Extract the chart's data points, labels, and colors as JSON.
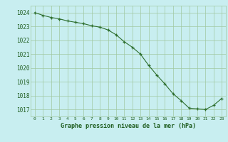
{
  "x": [
    0,
    1,
    2,
    3,
    4,
    5,
    6,
    7,
    8,
    9,
    10,
    11,
    12,
    13,
    14,
    15,
    16,
    17,
    18,
    19,
    20,
    21,
    22,
    23
  ],
  "y": [
    1024.0,
    1023.8,
    1023.65,
    1023.55,
    1023.4,
    1023.3,
    1023.2,
    1023.05,
    1022.95,
    1022.75,
    1022.4,
    1021.9,
    1021.5,
    1021.0,
    1020.2,
    1019.5,
    1018.85,
    1018.15,
    1017.65,
    1017.1,
    1017.05,
    1017.0,
    1017.3,
    1017.8
  ],
  "line_color": "#2d6e2d",
  "marker_color": "#2d6e2d",
  "bg_color": "#c8eef0",
  "grid_color": "#a0c8a0",
  "xlabel": "Graphe pression niveau de la mer (hPa)",
  "xlabel_color": "#1e5c1e",
  "ylabel_ticks": [
    1017,
    1018,
    1019,
    1020,
    1021,
    1022,
    1023,
    1024
  ],
  "xlim": [
    -0.5,
    23.5
  ],
  "ylim": [
    1016.5,
    1024.5
  ],
  "tick_color": "#1e5c1e"
}
